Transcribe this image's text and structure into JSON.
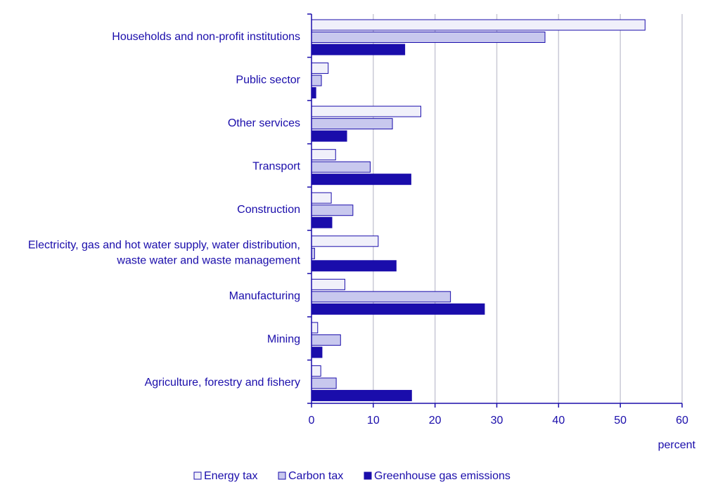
{
  "chart_data": {
    "type": "bar",
    "orientation": "horizontal",
    "categories": [
      [
        "Households and non-profit institutions"
      ],
      [
        "Public sector"
      ],
      [
        "Other services"
      ],
      [
        "Transport"
      ],
      [
        "Construction"
      ],
      [
        "Electricity, gas and hot water supply, water distribution,",
        "waste water and waste management"
      ],
      [
        "Manufacturing"
      ],
      [
        "Mining"
      ],
      [
        "Agriculture, forestry and fishery"
      ]
    ],
    "series": [
      {
        "name": "Energy tax",
        "color": "#f0f0fa",
        "values": [
          54.0,
          2.7,
          17.7,
          3.9,
          3.2,
          10.8,
          5.4,
          1.0,
          1.5
        ]
      },
      {
        "name": "Carbon tax",
        "color": "#c8c8ee",
        "values": [
          37.8,
          1.6,
          13.1,
          9.5,
          6.7,
          0.5,
          22.5,
          4.7,
          4.0
        ]
      },
      {
        "name": "Greenhouse gas emissions",
        "color": "#1a0dab",
        "values": [
          15.1,
          0.7,
          5.7,
          16.1,
          3.3,
          13.7,
          28.0,
          1.7,
          16.2
        ]
      }
    ],
    "xlim": [
      0,
      60
    ],
    "xticks": [
      0,
      10,
      20,
      30,
      40,
      50,
      60
    ],
    "xlabel": "percent",
    "grid": true,
    "legend_position": "bottom"
  }
}
